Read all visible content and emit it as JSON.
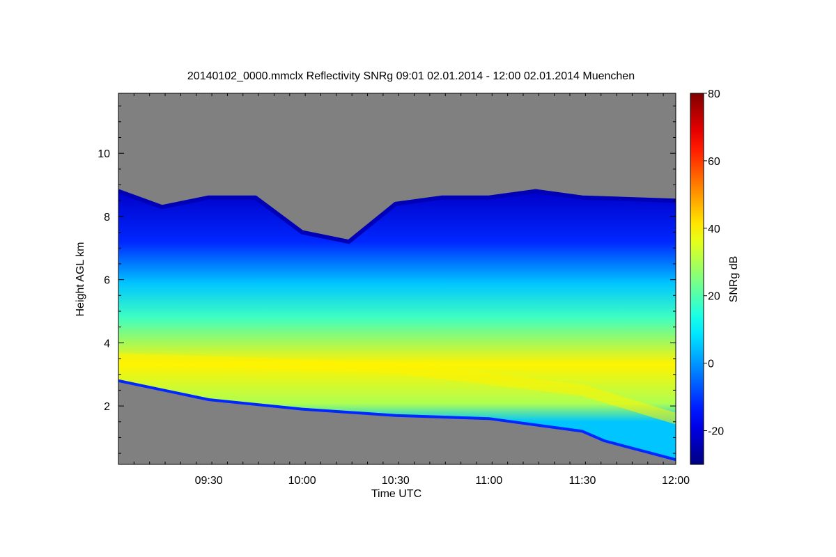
{
  "chart_data": {
    "type": "heatmap",
    "title": "20140102_0000.mmclx Reflectivity SNRg   09:01 02.01.2014 - 12:00 02.01.2014 Muenchen",
    "xlabel": "Time UTC",
    "ylabel": "Height AGL km",
    "xlim": [
      "09:01",
      "12:00"
    ],
    "ylim": [
      0.15,
      11.9
    ],
    "x_ticks": [
      "09:30",
      "10:00",
      "10:30",
      "11:00",
      "11:30",
      "12:00"
    ],
    "y_ticks": [
      2,
      4,
      6,
      8,
      10
    ],
    "colorbar": {
      "label": "SNRg dB",
      "range": [
        -30,
        80
      ],
      "ticks": [
        -20,
        0,
        20,
        40,
        60,
        80
      ],
      "colormap": "jet"
    },
    "background_color": "#808080",
    "echo_features": {
      "cloud_top_km": [
        {
          "time": "09:01",
          "value": 8.8
        },
        {
          "time": "09:15",
          "value": 8.3
        },
        {
          "time": "09:30",
          "value": 8.6
        },
        {
          "time": "09:45",
          "value": 8.6
        },
        {
          "time": "10:00",
          "value": 7.5
        },
        {
          "time": "10:15",
          "value": 7.2
        },
        {
          "time": "10:30",
          "value": 8.4
        },
        {
          "time": "10:45",
          "value": 8.6
        },
        {
          "time": "11:00",
          "value": 8.6
        },
        {
          "time": "11:15",
          "value": 8.8
        },
        {
          "time": "11:30",
          "value": 8.6
        },
        {
          "time": "12:00",
          "value": 8.5
        }
      ],
      "cloud_base_km": [
        {
          "time": "09:01",
          "value": 2.8
        },
        {
          "time": "09:30",
          "value": 2.2
        },
        {
          "time": "10:00",
          "value": 1.9
        },
        {
          "time": "10:30",
          "value": 1.7
        },
        {
          "time": "11:00",
          "value": 1.6
        },
        {
          "time": "11:30",
          "value": 1.2
        },
        {
          "time": "11:37",
          "value": 0.9
        },
        {
          "time": "12:00",
          "value": 0.3
        }
      ],
      "max_snr_layer_km": [
        {
          "time": "09:01",
          "value": 3.5
        },
        {
          "time": "10:30",
          "value": 3.2
        },
        {
          "time": "11:30",
          "value": 2.5
        },
        {
          "time": "12:00",
          "value": 1.6
        }
      ],
      "max_snr_layer_db": 40
    }
  }
}
